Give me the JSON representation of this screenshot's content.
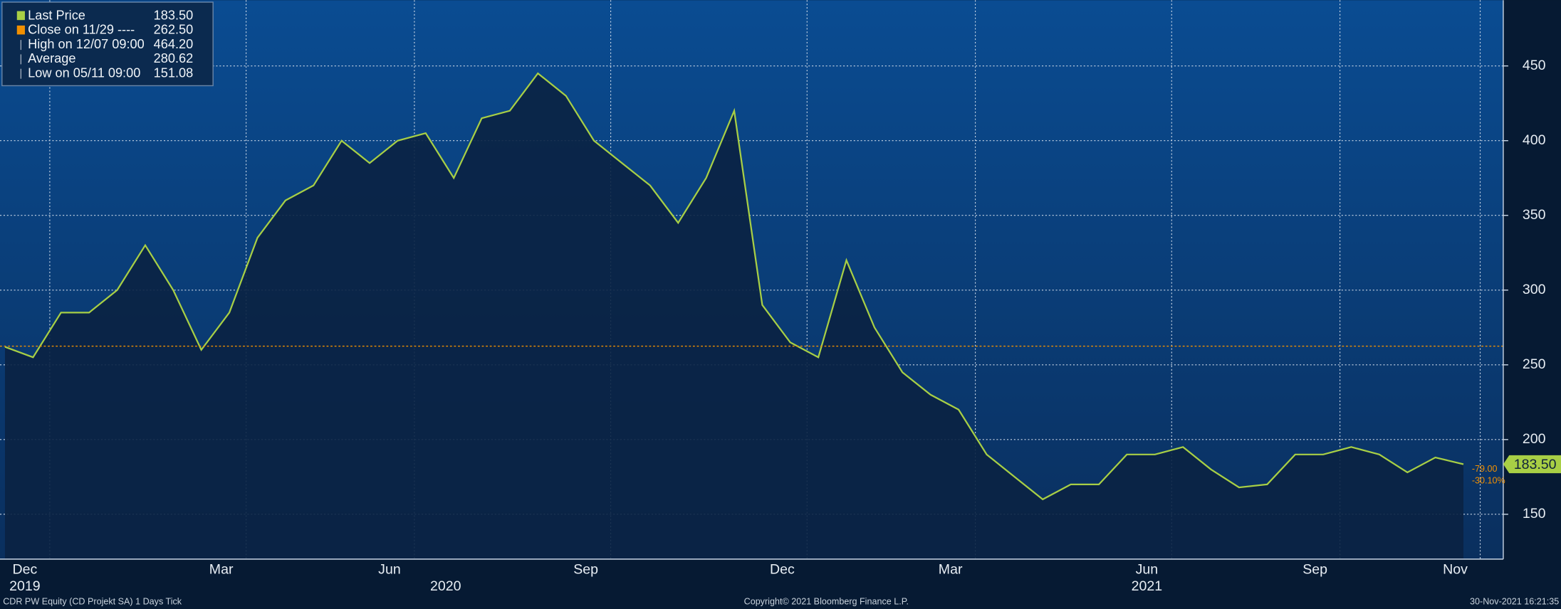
{
  "chart_data": {
    "type": "area-line",
    "title": "CDR PW Equity (CD Projekt SA) 1 Days  Tick",
    "copyright": "Copyright© 2021 Bloomberg Finance L.P.",
    "timestamp": "30-Nov-2021 16:21:35",
    "categories": [
      "Dec",
      null,
      null,
      null,
      null,
      null,
      null,
      "Mar",
      null,
      null,
      null,
      null,
      null,
      "Jun",
      null,
      null,
      null,
      null,
      null,
      null,
      "Sep",
      null,
      null,
      null,
      null,
      null,
      null,
      "Dec",
      null,
      null,
      null,
      null,
      null,
      "Mar",
      null,
      null,
      null,
      null,
      null,
      null,
      "Jun",
      null,
      null,
      null,
      null,
      null,
      "Sep",
      null,
      null,
      null,
      null,
      "Nov",
      null
    ],
    "category_years": [
      "2019",
      null,
      null,
      null,
      null,
      null,
      null,
      null,
      null,
      null,
      null,
      null,
      null,
      null,
      null,
      "2020",
      null,
      null,
      null,
      null,
      null,
      null,
      null,
      null,
      null,
      null,
      null,
      null,
      null,
      null,
      null,
      null,
      null,
      null,
      null,
      null,
      null,
      null,
      null,
      null,
      "2021",
      null,
      null,
      null,
      null,
      null,
      null,
      null,
      null,
      null,
      null,
      null,
      null
    ],
    "series": [
      {
        "name": "Last Price",
        "color": "#a8cf45",
        "values": [
          262,
          255,
          285,
          285,
          300,
          330,
          300,
          260,
          285,
          335,
          360,
          370,
          400,
          385,
          400,
          405,
          375,
          415,
          420,
          445,
          430,
          400,
          385,
          370,
          345,
          375,
          420,
          290,
          265,
          255,
          320,
          275,
          245,
          230,
          220,
          190,
          175,
          160,
          170,
          170,
          190,
          190,
          195,
          180,
          168,
          170,
          190,
          190,
          195,
          190,
          178,
          188,
          183.5
        ]
      }
    ],
    "reference_line": {
      "value": 262.5,
      "color": "#f29000"
    },
    "legend": [
      {
        "label": "Last Price",
        "value": "183.50"
      },
      {
        "label": "Close on 11/29 ----",
        "value": "262.50"
      },
      {
        "label": "High on 12/07 09:00",
        "value": "464.20"
      },
      {
        "label": "Average",
        "value": "280.62"
      },
      {
        "label": "Low on 05/11 09:00",
        "value": "151.08"
      }
    ],
    "last_tag": {
      "value": 183.5,
      "label": "183.50",
      "change": "-79.00",
      "change_pct": "-30.10%"
    },
    "ylim": [
      120,
      494
    ],
    "yticks": [
      150,
      200,
      250,
      300,
      350,
      400,
      450
    ],
    "grid": true
  }
}
